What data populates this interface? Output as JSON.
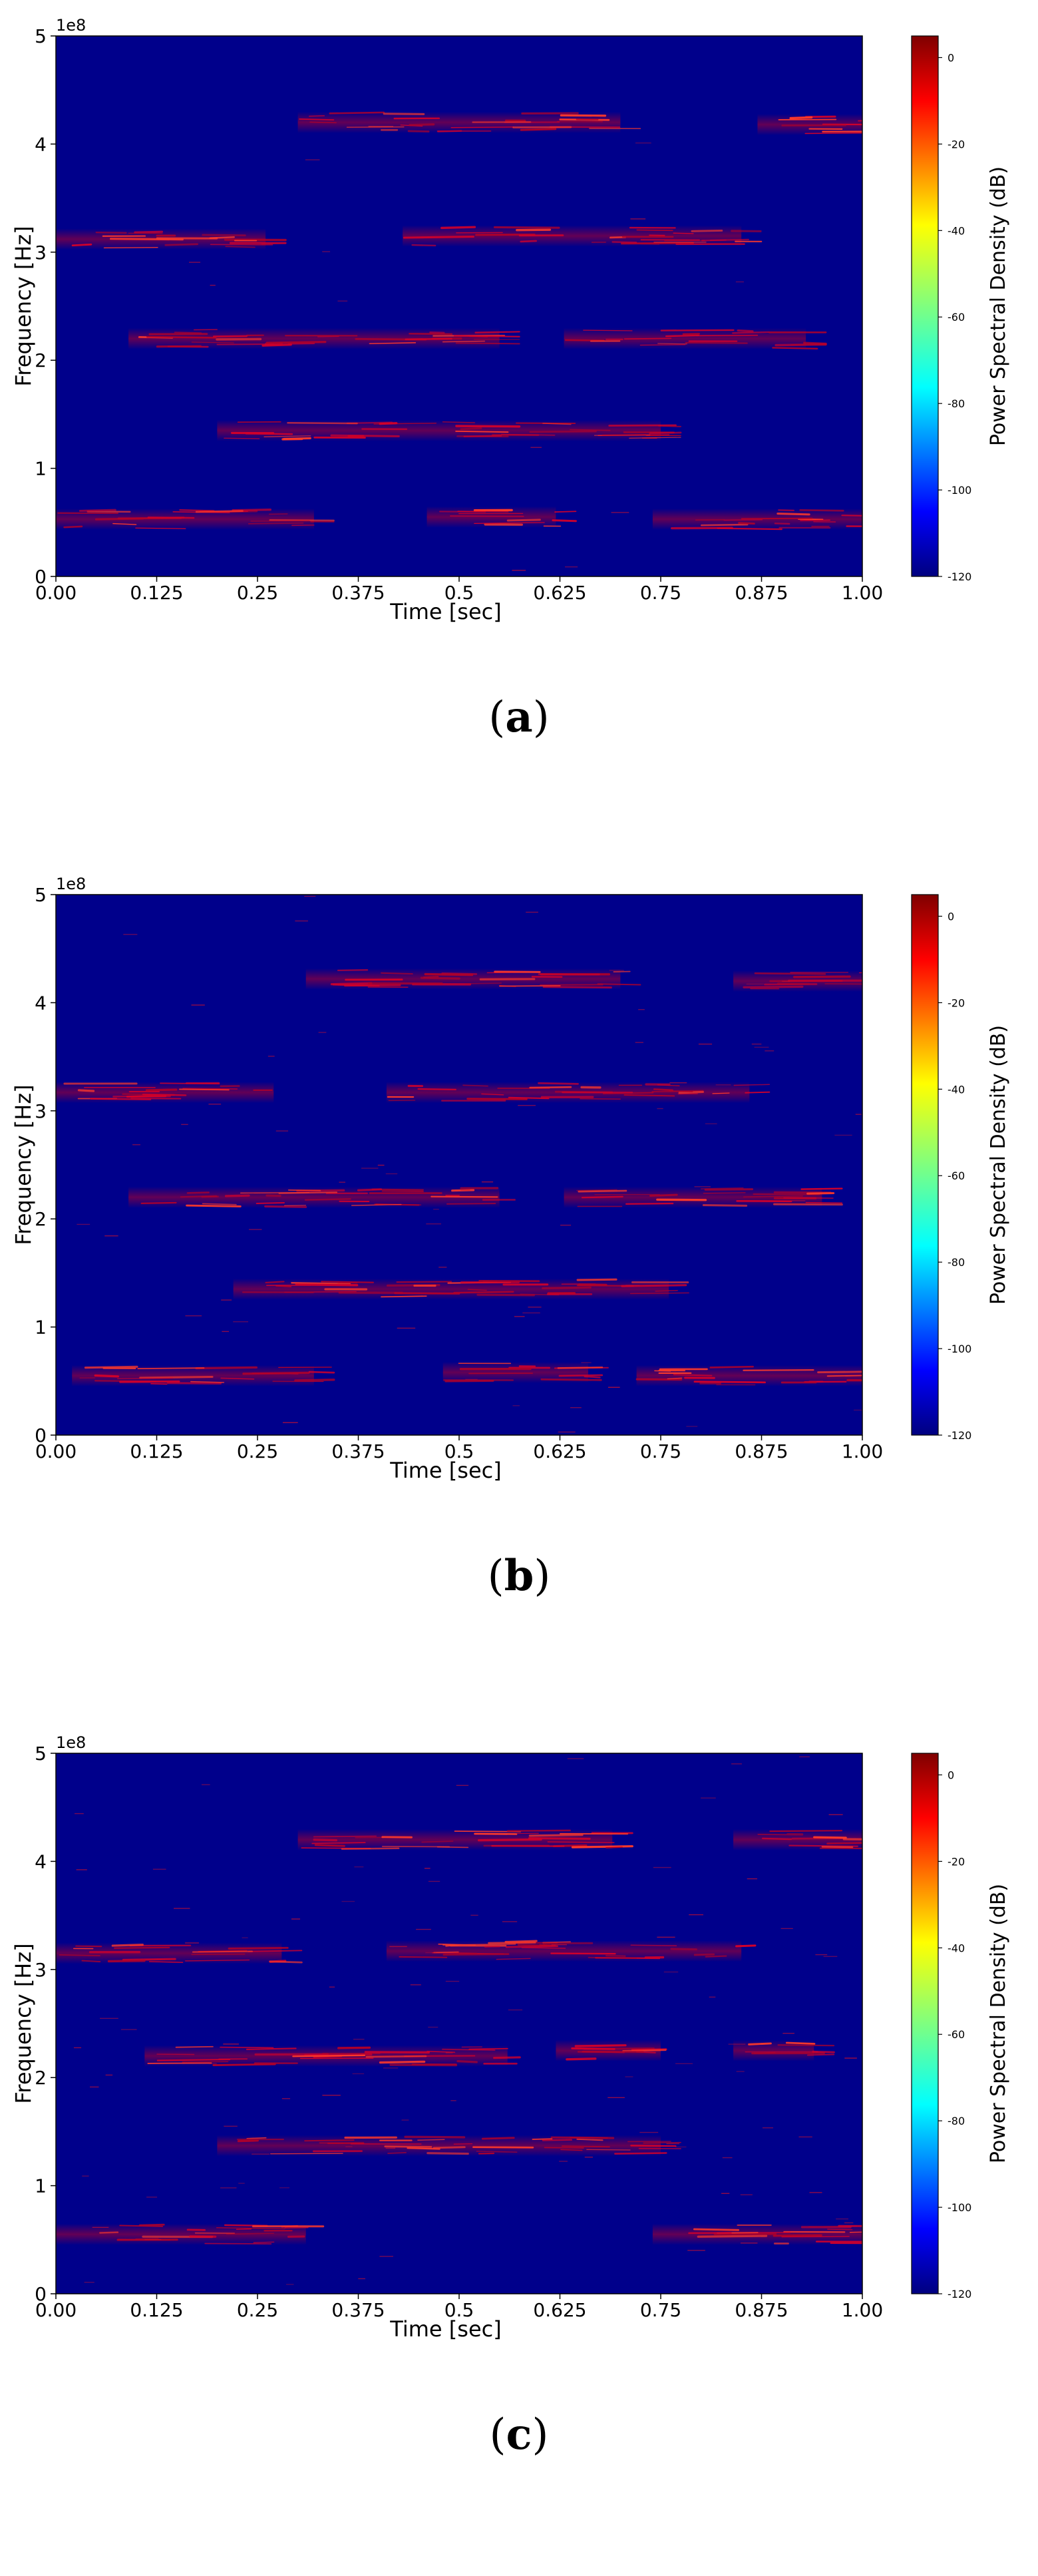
{
  "chart_data": [
    {
      "type": "heatmap",
      "panel_label": "a",
      "xlabel": "Time [sec]",
      "ylabel": "Frequency [Hz]",
      "y_multiplier_label": "1e8",
      "xticks": [
        "0.00",
        "0.125",
        "0.25",
        "0.375",
        "0.5",
        "0.625",
        "0.75",
        "0.875",
        "1.00"
      ],
      "yticks": [
        "0",
        "1",
        "2",
        "3",
        "4",
        "5"
      ],
      "xlim": [
        0,
        1
      ],
      "ylim": [
        0,
        5
      ],
      "colorbar": {
        "label": "Power Spectral Density (dB)",
        "ticks": [
          "0",
          "-20",
          "-40",
          "-60",
          "-80",
          "-100",
          "-120"
        ],
        "range": [
          -120,
          5
        ]
      },
      "background_color": "#00008b",
      "signal_color": "#c8001e",
      "bands": [
        {
          "t0": 0.0,
          "t1": 0.32,
          "f": 0.53
        },
        {
          "t0": 0.46,
          "t1": 0.62,
          "f": 0.55
        },
        {
          "t0": 0.74,
          "t1": 1.0,
          "f": 0.53
        },
        {
          "t0": 0.2,
          "t1": 0.75,
          "f": 1.35
        },
        {
          "t0": 0.09,
          "t1": 0.55,
          "f": 2.2
        },
        {
          "t0": 0.63,
          "t1": 0.93,
          "f": 2.2
        },
        {
          "t0": 0.0,
          "t1": 0.26,
          "f": 3.12
        },
        {
          "t0": 0.43,
          "t1": 0.85,
          "f": 3.15
        },
        {
          "t0": 0.3,
          "t1": 0.7,
          "f": 4.2
        },
        {
          "t0": 0.87,
          "t1": 1.0,
          "f": 4.18
        }
      ]
    },
    {
      "type": "heatmap",
      "panel_label": "b",
      "xlabel": "Time [sec]",
      "ylabel": "Frequency [Hz]",
      "y_multiplier_label": "1e8",
      "xticks": [
        "0.00",
        "0.125",
        "0.25",
        "0.375",
        "0.5",
        "0.625",
        "0.75",
        "0.875",
        "1.00"
      ],
      "yticks": [
        "0",
        "1",
        "2",
        "3",
        "4",
        "5"
      ],
      "xlim": [
        0,
        1
      ],
      "ylim": [
        0,
        5
      ],
      "colorbar": {
        "label": "Power Spectral Density (dB)",
        "ticks": [
          "0",
          "-20",
          "-40",
          "-60",
          "-80",
          "-100",
          "-120"
        ],
        "range": [
          -120,
          5
        ]
      },
      "background_color": "#00008b",
      "signal_color": "#c8001e",
      "bands": [
        {
          "t0": 0.02,
          "t1": 0.32,
          "f": 0.55
        },
        {
          "t0": 0.48,
          "t1": 0.66,
          "f": 0.58
        },
        {
          "t0": 0.72,
          "t1": 1.0,
          "f": 0.55
        },
        {
          "t0": 0.22,
          "t1": 0.76,
          "f": 1.35
        },
        {
          "t0": 0.09,
          "t1": 0.55,
          "f": 2.2
        },
        {
          "t0": 0.63,
          "t1": 0.95,
          "f": 2.2
        },
        {
          "t0": 0.0,
          "t1": 0.27,
          "f": 3.17
        },
        {
          "t0": 0.41,
          "t1": 0.86,
          "f": 3.17
        },
        {
          "t0": 0.31,
          "t1": 0.7,
          "f": 4.22
        },
        {
          "t0": 0.84,
          "t1": 1.0,
          "f": 4.2
        }
      ]
    },
    {
      "type": "heatmap",
      "panel_label": "c",
      "xlabel": "Time [sec]",
      "ylabel": "Frequency [Hz]",
      "y_multiplier_label": "1e8",
      "xticks": [
        "0.00",
        "0.125",
        "0.25",
        "0.375",
        "0.5",
        "0.625",
        "0.75",
        "0.875",
        "1.00"
      ],
      "yticks": [
        "0",
        "1",
        "2",
        "3",
        "4",
        "5"
      ],
      "xlim": [
        0,
        1
      ],
      "ylim": [
        0,
        5
      ],
      "colorbar": {
        "label": "Power Spectral Density (dB)",
        "ticks": [
          "0",
          "-20",
          "-40",
          "-60",
          "-80",
          "-100",
          "-120"
        ],
        "range": [
          -120,
          5
        ]
      },
      "background_color": "#00008b",
      "signal_color": "#c8001e",
      "bands": [
        {
          "t0": 0.0,
          "t1": 0.31,
          "f": 0.55
        },
        {
          "t0": 0.74,
          "t1": 1.0,
          "f": 0.55
        },
        {
          "t0": 0.2,
          "t1": 0.75,
          "f": 1.37
        },
        {
          "t0": 0.11,
          "t1": 0.56,
          "f": 2.2
        },
        {
          "t0": 0.62,
          "t1": 0.75,
          "f": 2.25
        },
        {
          "t0": 0.84,
          "t1": 0.94,
          "f": 2.25
        },
        {
          "t0": 0.0,
          "t1": 0.28,
          "f": 3.15
        },
        {
          "t0": 0.41,
          "t1": 0.85,
          "f": 3.17
        },
        {
          "t0": 0.3,
          "t1": 0.69,
          "f": 4.2
        },
        {
          "t0": 0.84,
          "t1": 1.0,
          "f": 4.2
        }
      ]
    }
  ]
}
